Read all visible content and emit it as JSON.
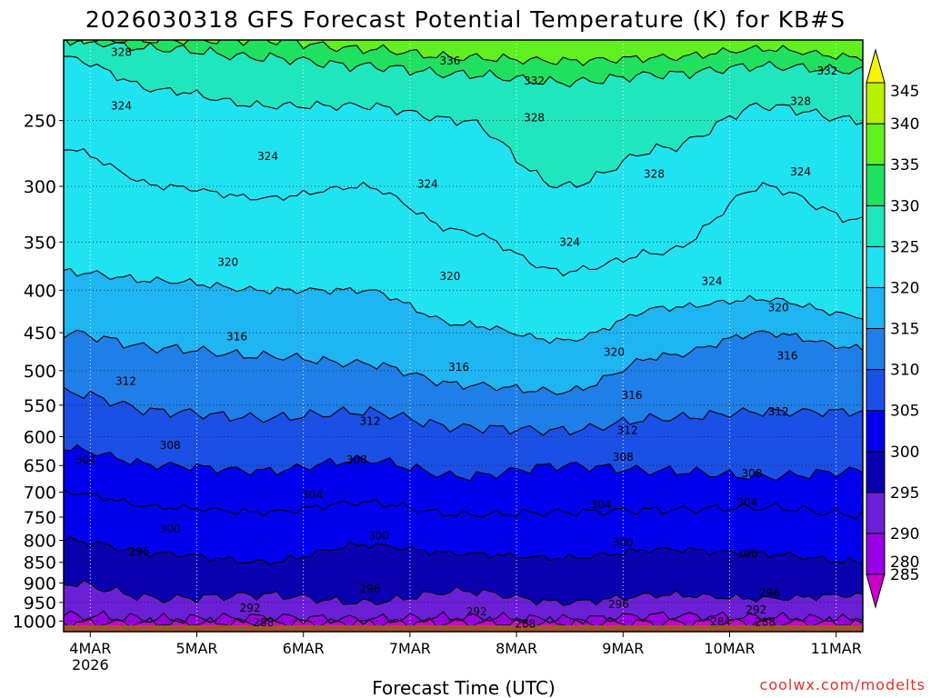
{
  "chart_data": {
    "type": "heatmap",
    "title": "2026030318 GFS Forecast Potential Temperature (K) for KB#S",
    "xlabel": "Forecast Time (UTC)",
    "ylabel": "",
    "credit": "coolwx.com/modelts",
    "x_ticks": [
      {
        "label": "4MAR",
        "sublabel": "2026",
        "hour": 6
      },
      {
        "label": "5MAR",
        "hour": 30
      },
      {
        "label": "6MAR",
        "hour": 54
      },
      {
        "label": "7MAR",
        "hour": 78
      },
      {
        "label": "8MAR",
        "hour": 102
      },
      {
        "label": "9MAR",
        "hour": 126
      },
      {
        "label": "10MAR",
        "hour": 150
      },
      {
        "label": "11MAR",
        "hour": 174
      }
    ],
    "xlim": [
      0,
      180
    ],
    "y_ticks": [
      250,
      300,
      350,
      400,
      450,
      500,
      550,
      600,
      650,
      700,
      750,
      800,
      850,
      900,
      950,
      1000
    ],
    "ylim": [
      200,
      1030
    ],
    "y_scale": "log-pressure (hPa, inverted)",
    "colorbar": {
      "levels": [
        280,
        285,
        290,
        295,
        300,
        305,
        310,
        315,
        320,
        325,
        330,
        335,
        340,
        345
      ],
      "colors": [
        "#cc00cc",
        "#9a00e6",
        "#6b1fd6",
        "#0a00b0",
        "#0000ee",
        "#1a50e6",
        "#1f7fe8",
        "#1fb4f2",
        "#20e3f2",
        "#1fe6bf",
        "#20e060",
        "#60f020",
        "#b8f000",
        "#f5f500"
      ]
    },
    "contour_interval": 4,
    "contours": [
      {
        "value": 288,
        "pressure": [
          1005,
          1005,
          1004,
          1005,
          1004,
          1005,
          1005,
          1004,
          1005
        ]
      },
      {
        "value": 292,
        "pressure": [
          985,
          995,
          990,
          995,
          990,
          995,
          985,
          990,
          995
        ]
      },
      {
        "value": 296,
        "pressure": [
          900,
          940,
          930,
          950,
          920,
          950,
          930,
          940,
          930
        ]
      },
      {
        "value": 300,
        "pressure": [
          800,
          830,
          850,
          810,
          830,
          840,
          820,
          830,
          850
        ]
      },
      {
        "value": 304,
        "pressure": [
          700,
          730,
          740,
          720,
          745,
          740,
          735,
          730,
          745
        ]
      },
      {
        "value": 308,
        "pressure": [
          620,
          650,
          660,
          640,
          670,
          650,
          660,
          670,
          660
        ]
      },
      {
        "value": 312,
        "pressure": [
          530,
          560,
          570,
          560,
          585,
          590,
          570,
          560,
          560
        ]
      },
      {
        "value": 316,
        "pressure": [
          450,
          470,
          480,
          490,
          520,
          530,
          480,
          450,
          470
        ]
      },
      {
        "value": 320,
        "pressure": [
          380,
          390,
          400,
          400,
          440,
          460,
          420,
          410,
          430
        ]
      },
      {
        "value": 324,
        "pressure": [
          270,
          300,
          310,
          300,
          340,
          380,
          360,
          300,
          330
        ]
      },
      {
        "value": 328,
        "pressure": [
          210,
          230,
          240,
          240,
          250,
          300,
          270,
          240,
          250
        ]
      },
      {
        "value": 332,
        "pressure": [
          200,
          205,
          210,
          215,
          220,
          225,
          220,
          215,
          218
        ]
      },
      {
        "value": 336,
        "pressure": [
          200,
          200,
          200,
          205,
          210,
          212,
          210,
          205,
          210
        ]
      }
    ],
    "contour_labels": [
      {
        "text": "328",
        "hour": 13,
        "pressure": 207
      },
      {
        "text": "336",
        "hour": 87,
        "pressure": 212
      },
      {
        "text": "332",
        "hour": 106,
        "pressure": 224
      },
      {
        "text": "332",
        "hour": 172,
        "pressure": 218
      },
      {
        "text": "324",
        "hour": 13,
        "pressure": 240
      },
      {
        "text": "328",
        "hour": 106,
        "pressure": 248
      },
      {
        "text": "328",
        "hour": 166,
        "pressure": 237
      },
      {
        "text": "324",
        "hour": 46,
        "pressure": 276
      },
      {
        "text": "328",
        "hour": 133,
        "pressure": 290
      },
      {
        "text": "324",
        "hour": 82,
        "pressure": 298
      },
      {
        "text": "324",
        "hour": 166,
        "pressure": 288
      },
      {
        "text": "324",
        "hour": 114,
        "pressure": 350
      },
      {
        "text": "320",
        "hour": 37,
        "pressure": 370
      },
      {
        "text": "320",
        "hour": 87,
        "pressure": 385
      },
      {
        "text": "324",
        "hour": 146,
        "pressure": 390
      },
      {
        "text": "320",
        "hour": 161,
        "pressure": 420
      },
      {
        "text": "316",
        "hour": 39,
        "pressure": 455
      },
      {
        "text": "320",
        "hour": 124,
        "pressure": 475
      },
      {
        "text": "316",
        "hour": 163,
        "pressure": 480
      },
      {
        "text": "316",
        "hour": 89,
        "pressure": 495
      },
      {
        "text": "312",
        "hour": 14,
        "pressure": 515
      },
      {
        "text": "316",
        "hour": 128,
        "pressure": 535
      },
      {
        "text": "312",
        "hour": 161,
        "pressure": 560
      },
      {
        "text": "312",
        "hour": 69,
        "pressure": 575
      },
      {
        "text": "312",
        "hour": 127,
        "pressure": 590
      },
      {
        "text": "308",
        "hour": 24,
        "pressure": 615
      },
      {
        "text": "308",
        "hour": 126,
        "pressure": 635
      },
      {
        "text": "308",
        "hour": 66,
        "pressure": 640
      },
      {
        "text": "304",
        "hour": 5,
        "pressure": 640
      },
      {
        "text": "308",
        "hour": 155,
        "pressure": 665
      },
      {
        "text": "304",
        "hour": 56,
        "pressure": 705
      },
      {
        "text": "304",
        "hour": 121,
        "pressure": 725
      },
      {
        "text": "304",
        "hour": 154,
        "pressure": 720
      },
      {
        "text": "300",
        "hour": 24,
        "pressure": 775
      },
      {
        "text": "300",
        "hour": 71,
        "pressure": 790
      },
      {
        "text": "300",
        "hour": 126,
        "pressure": 805
      },
      {
        "text": "300",
        "hour": 154,
        "pressure": 830
      },
      {
        "text": "296",
        "hour": 17,
        "pressure": 825
      },
      {
        "text": "296",
        "hour": 69,
        "pressure": 915
      },
      {
        "text": "296",
        "hour": 125,
        "pressure": 955
      },
      {
        "text": "296",
        "hour": 159,
        "pressure": 925
      },
      {
        "text": "292",
        "hour": 42,
        "pressure": 965
      },
      {
        "text": "292",
        "hour": 93,
        "pressure": 975
      },
      {
        "text": "292",
        "hour": 156,
        "pressure": 970
      },
      {
        "text": "288",
        "hour": 45,
        "pressure": 1005
      },
      {
        "text": "288",
        "hour": 104,
        "pressure": 1008
      },
      {
        "text": "284",
        "hour": 148,
        "pressure": 1002
      },
      {
        "text": "288",
        "hour": 158,
        "pressure": 1003
      }
    ],
    "surface_color": "#a0522d"
  }
}
